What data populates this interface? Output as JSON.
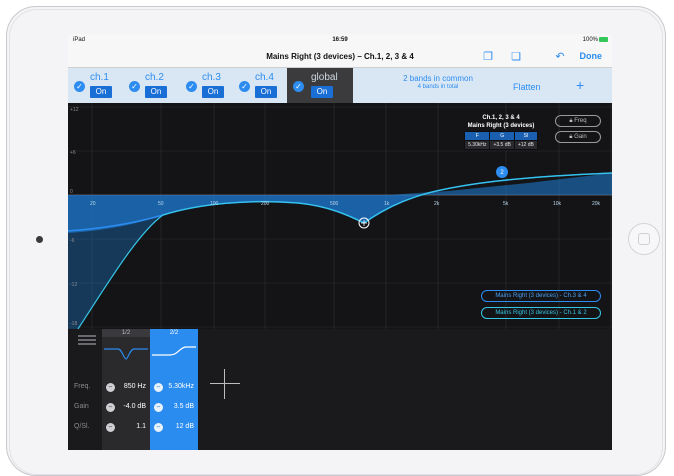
{
  "status": {
    "device": "iPad",
    "time": "16:59",
    "battery": "100%"
  },
  "nav": {
    "title": "Mains Right (3 devices) – Ch.1, 2, 3 & 4",
    "done_label": "Done"
  },
  "channels": [
    {
      "name": "ch.1",
      "state": "On"
    },
    {
      "name": "ch.2",
      "state": "On"
    },
    {
      "name": "ch.3",
      "state": "On"
    },
    {
      "name": "ch.4",
      "state": "On"
    },
    {
      "name": "global",
      "state": "On"
    }
  ],
  "bands_info": {
    "common": "2 bands in common",
    "total": "4 bands in total"
  },
  "flatten_label": "Flatten",
  "plus_label": "+",
  "graph": {
    "y_ticks": [
      "+12",
      "+6",
      "0",
      "-6",
      "-12",
      "-18"
    ],
    "freq_labels": [
      "20",
      "50",
      "100",
      "200",
      "500",
      "1k",
      "2k",
      "5k",
      "10k",
      "20k"
    ],
    "band_marker": "2",
    "info_title1": "Ch.1, 2, 3 & 4",
    "info_title2": "Mains Right (3 devices)",
    "info_headers": [
      "F",
      "G",
      "Sl"
    ],
    "info_values": [
      "5.30kHz",
      "+3.5 dB",
      "+12 dB"
    ],
    "lock_freq": "Freq",
    "lock_gain": "Gain",
    "legend_1": "Mains Right (3 devices) - Ch.3 & 4",
    "legend_2": "Mains Right (3 devices) - Ch.1 & 2",
    "colors": {
      "curve1": "#2c8cf0",
      "curve2": "#35c6e8",
      "fill": "#1e7fd8"
    }
  },
  "editor": {
    "band_tabs": [
      "1/2",
      "2/2"
    ],
    "row_labels": [
      "Freq.",
      "Gain",
      "Q/Sl."
    ],
    "band1": {
      "freq": "850 Hz",
      "gain": "-4.0 dB",
      "q": "1.1"
    },
    "band2": {
      "freq": "5.30kHz",
      "gain": "3.5 dB",
      "q": "12 dB"
    }
  }
}
